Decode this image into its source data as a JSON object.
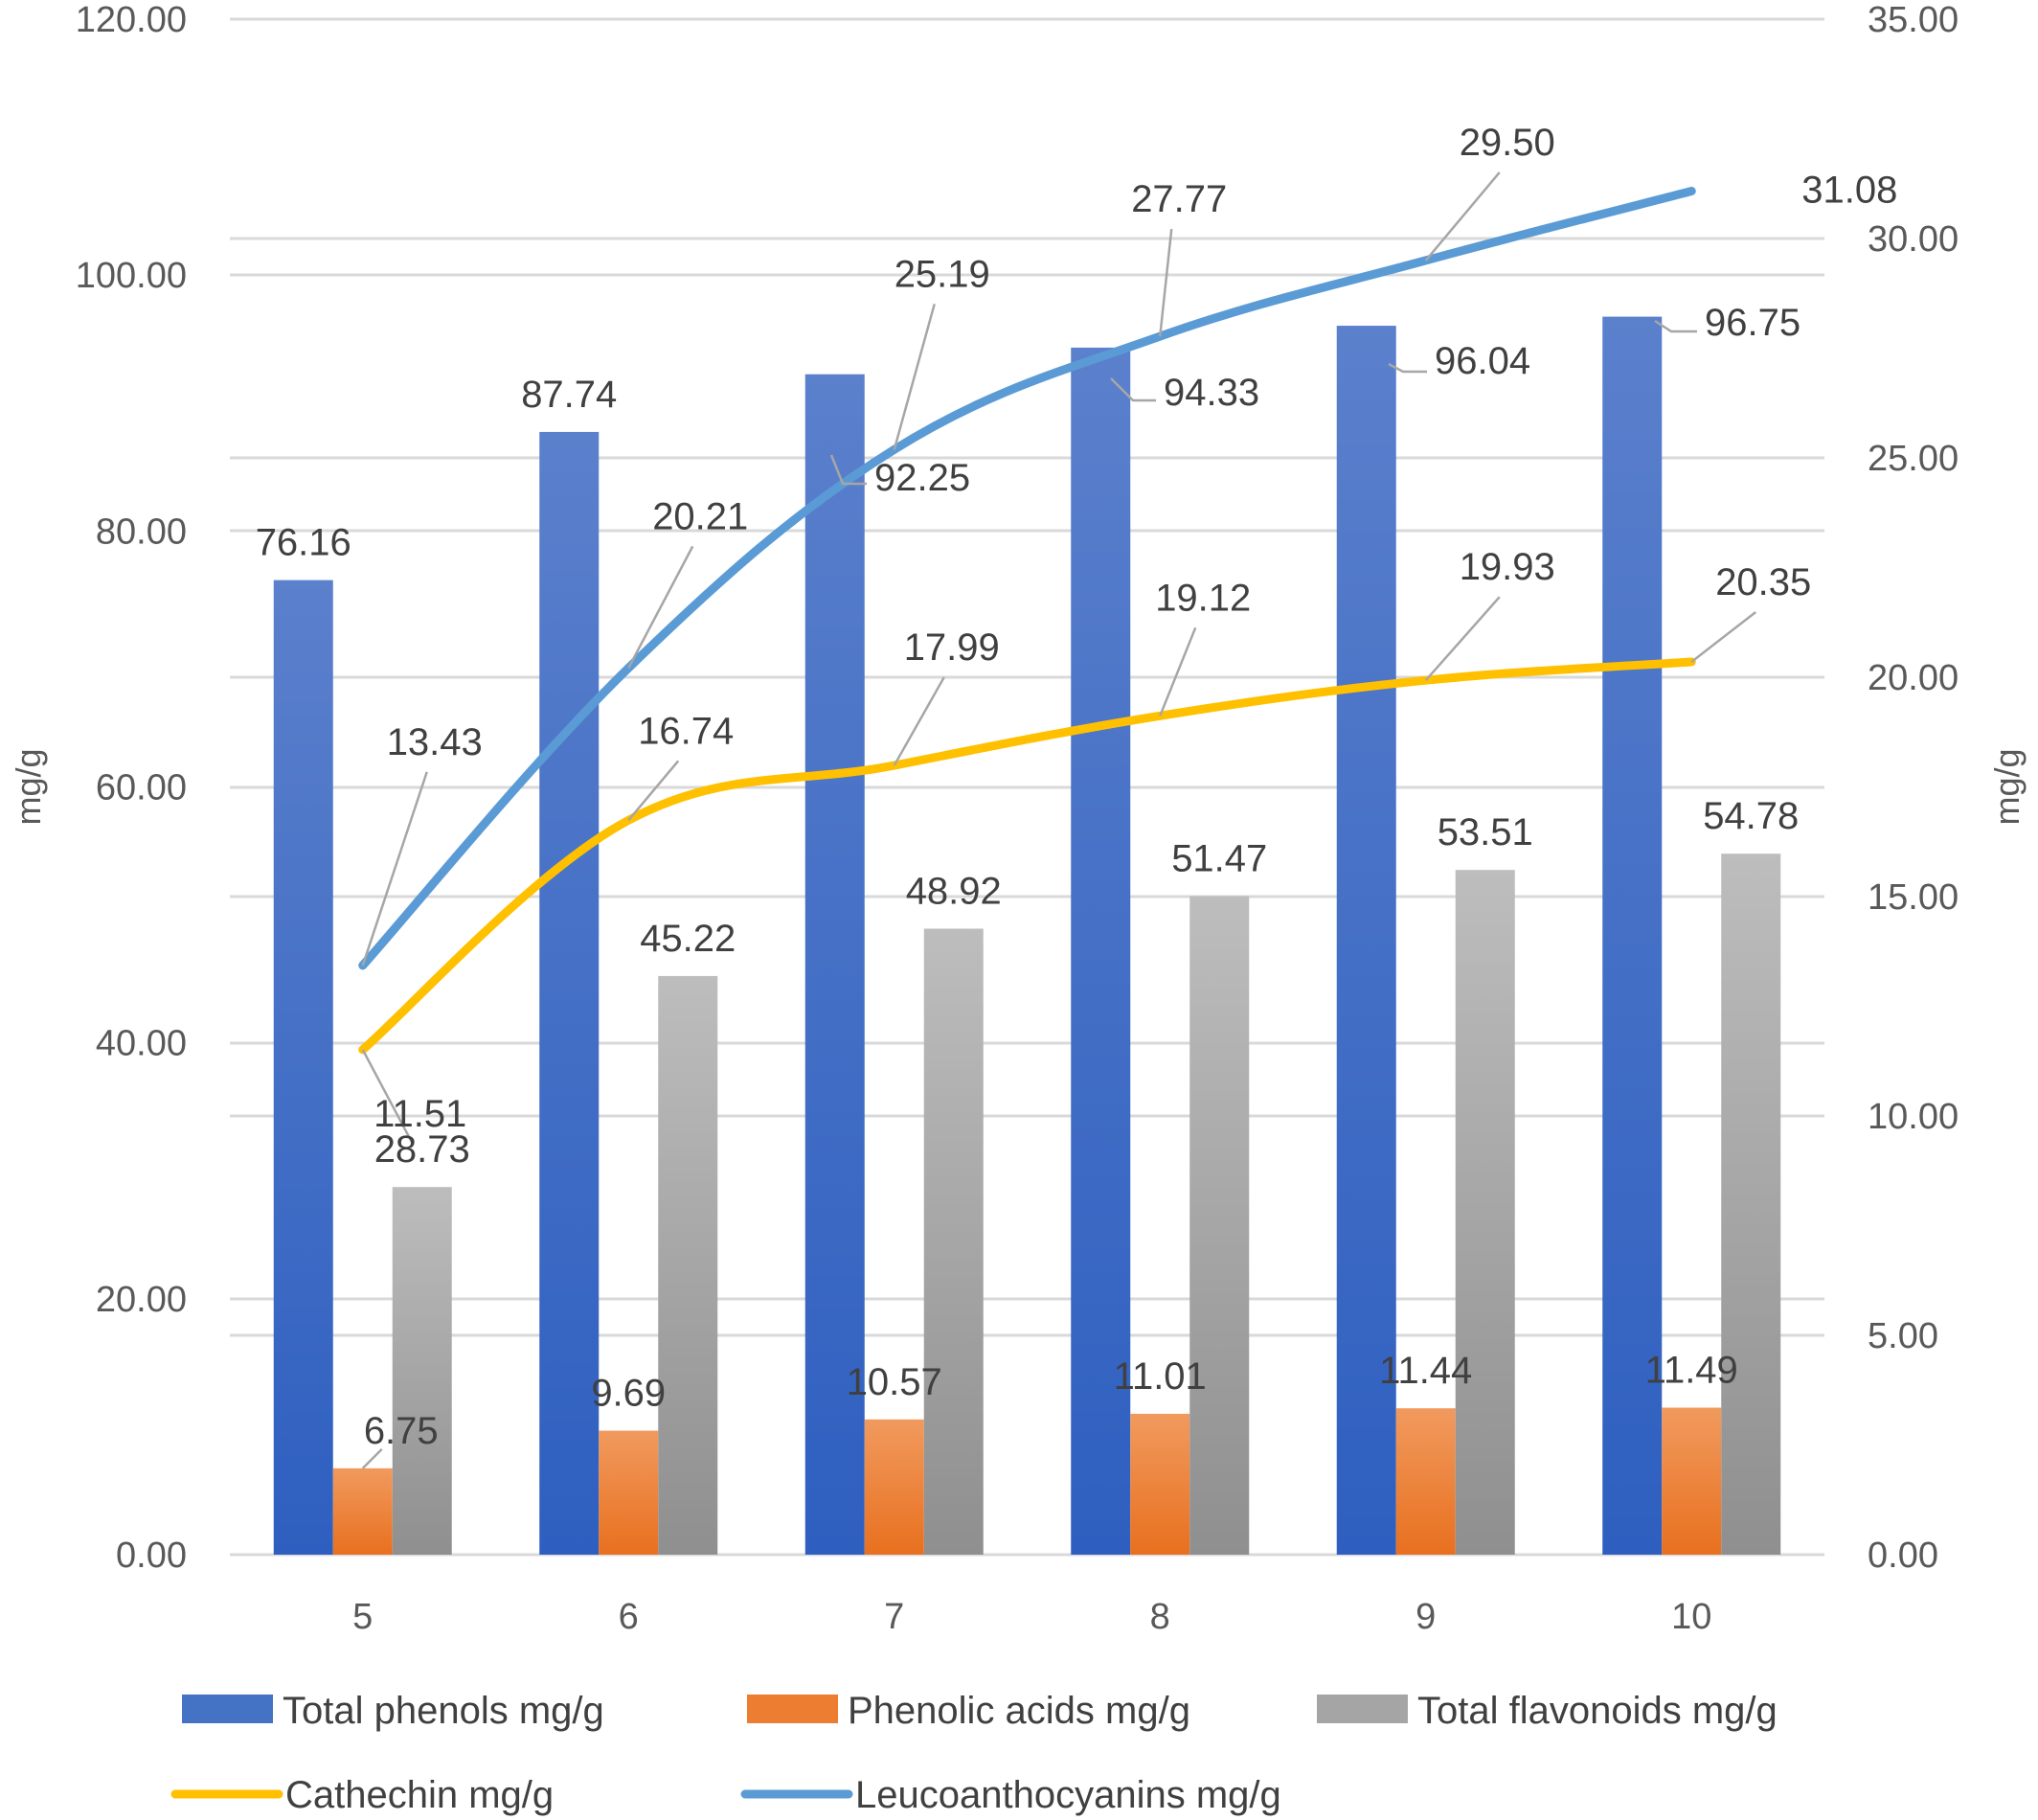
{
  "chart_data": {
    "type": "bar",
    "categories": [
      "5",
      "6",
      "7",
      "8",
      "9",
      "10"
    ],
    "series": [
      {
        "name": "Total phenols mg/g",
        "type": "bar",
        "axis": "left",
        "color": "#4472C4",
        "values": [
          76.16,
          87.74,
          92.25,
          94.33,
          96.04,
          96.75
        ]
      },
      {
        "name": "Phenolic acids mg/g",
        "type": "bar",
        "axis": "left",
        "color": "#ED7D31",
        "values": [
          6.75,
          9.69,
          10.57,
          11.01,
          11.44,
          11.49
        ]
      },
      {
        "name": "Total flavonoids mg/g",
        "type": "bar",
        "axis": "left",
        "color": "#A5A5A5",
        "values": [
          28.73,
          45.22,
          48.92,
          51.47,
          53.51,
          54.78
        ]
      },
      {
        "name": "Cathechin mg/g",
        "type": "line",
        "axis": "right",
        "color": "#FFC000",
        "values": [
          11.51,
          16.74,
          17.99,
          19.12,
          19.93,
          20.35
        ]
      },
      {
        "name": "Leucoanthocyanins mg/g",
        "type": "line",
        "axis": "right",
        "color": "#5B9BD5",
        "values": [
          13.43,
          20.21,
          25.19,
          27.77,
          29.5,
          31.08
        ]
      }
    ],
    "ylabel": "mg/g",
    "y2label": "mg/g",
    "ylim": [
      0,
      120
    ],
    "y2lim": [
      0,
      35
    ],
    "yticks": [
      "0.00",
      "20.00",
      "40.00",
      "60.00",
      "80.00",
      "100.00",
      "120.00"
    ],
    "y2ticks": [
      "0.00",
      "5.00",
      "10.00",
      "15.00",
      "20.00",
      "25.00",
      "30.00",
      "35.00"
    ],
    "grid": true,
    "legend_position": "bottom"
  }
}
